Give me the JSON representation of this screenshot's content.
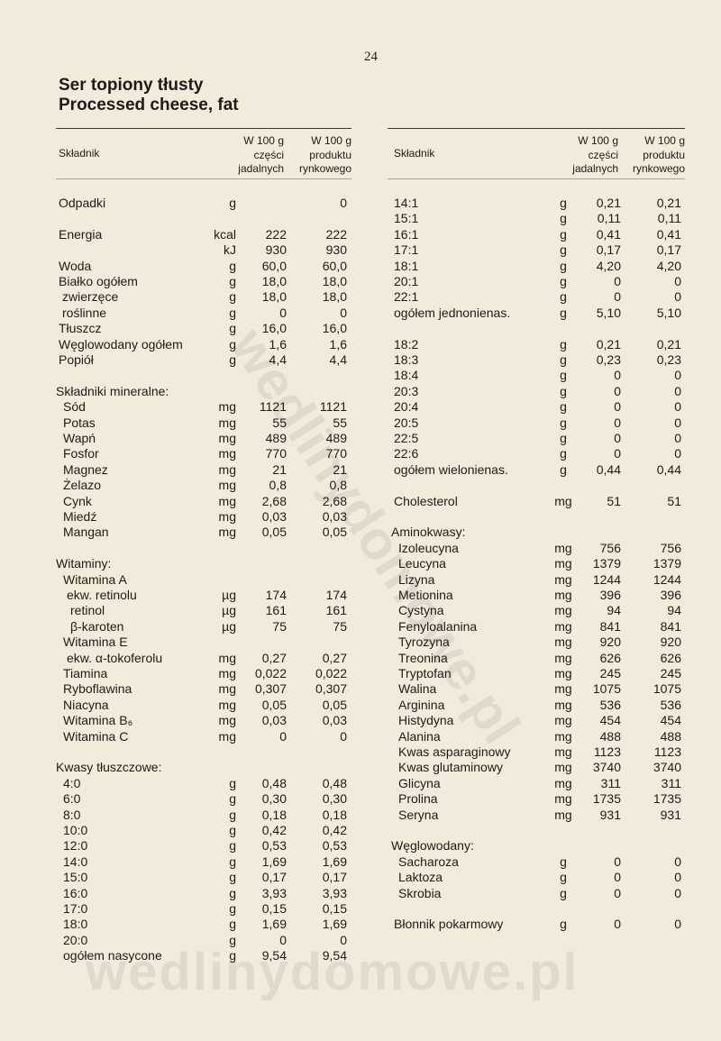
{
  "page_number": "24",
  "title": [
    "Ser topiony tłusty",
    "Processed cheese, fat"
  ],
  "header": {
    "name": "Składnik",
    "edible": [
      "W 100 g",
      "części",
      "jadalnych"
    ],
    "market": [
      "W 100 g",
      "produktu",
      "rynkowego"
    ]
  },
  "left": [
    {
      "rows": [
        [
          "Odpadki",
          "g",
          null,
          "0"
        ]
      ]
    },
    {
      "rows": [
        [
          "Energia",
          "kcal",
          "222",
          "222"
        ],
        [
          null,
          "kJ",
          "930",
          "930"
        ],
        [
          "Woda",
          "g",
          "60,0",
          "60,0"
        ],
        [
          "Białko ogółem",
          "g",
          "18,0",
          "18,0",
          [
            [
              "zwierzęce",
              "g",
              "18,0",
              "18,0"
            ],
            [
              "roślinne",
              "g",
              "0",
              "0"
            ]
          ]
        ],
        [
          "Tłuszcz",
          "g",
          "16,0",
          "16,0"
        ],
        [
          "Węglowodany ogółem",
          "g",
          "1,6",
          "1,6"
        ],
        [
          "Popiół",
          "g",
          "4,4",
          "4,4"
        ]
      ]
    },
    {
      "heading": "Składniki mineralne:",
      "rows": [
        [
          "Sód",
          "mg",
          "1121",
          "1121"
        ],
        [
          "Potas",
          "mg",
          "55",
          "55"
        ],
        [
          "Wapń",
          "mg",
          "489",
          "489"
        ],
        [
          "Fosfor",
          "mg",
          "770",
          "770"
        ],
        [
          "Magnez",
          "mg",
          "21",
          "21"
        ],
        [
          "Żelazo",
          "mg",
          "0,8",
          "0,8"
        ],
        [
          "Cynk",
          "mg",
          "2,68",
          "2,68"
        ],
        [
          "Miedź",
          "mg",
          "0,03",
          "0,03"
        ],
        [
          "Mangan",
          "mg",
          "0,05",
          "0,05"
        ]
      ]
    },
    {
      "heading": "Witaminy:",
      "rows": [
        [
          "Witamina A",
          null,
          null,
          null,
          [
            [
              "ekw. retinolu",
              "µg",
              "174",
              "174",
              [
                [
                  "retinol",
                  "µg",
                  "161",
                  "161"
                ],
                [
                  "β-karoten",
                  "µg",
                  "75",
                  "75"
                ]
              ]
            ]
          ]
        ],
        [
          "Witamina E",
          null,
          null,
          null,
          [
            [
              "ekw. α-tokoferolu",
              "mg",
              "0,27",
              "0,27"
            ]
          ]
        ],
        [
          "Tiamina",
          "mg",
          "0,022",
          "0,022"
        ],
        [
          "Ryboflawina",
          "mg",
          "0,307",
          "0,307"
        ],
        [
          "Niacyna",
          "mg",
          "0,05",
          "0,05"
        ],
        [
          "Witamina B₆",
          "mg",
          "0,03",
          "0,03"
        ],
        [
          "Witamina C",
          "mg",
          "0",
          "0"
        ]
      ]
    },
    {
      "heading": "Kwasy tłuszczowe:",
      "rows": [
        [
          "4:0",
          "g",
          "0,48",
          "0,48"
        ],
        [
          "6:0",
          "g",
          "0,30",
          "0,30"
        ],
        [
          "8:0",
          "g",
          "0,18",
          "0,18"
        ],
        [
          "10:0",
          "g",
          "0,42",
          "0,42"
        ],
        [
          "12:0",
          "g",
          "0,53",
          "0,53"
        ],
        [
          "14:0",
          "g",
          "1,69",
          "1,69"
        ],
        [
          "15:0",
          "g",
          "0,17",
          "0,17"
        ],
        [
          "16:0",
          "g",
          "3,93",
          "3,93"
        ],
        [
          "17:0",
          "g",
          "0,15",
          "0,15"
        ],
        [
          "18:0",
          "g",
          "1,69",
          "1,69"
        ],
        [
          "20:0",
          "g",
          "0",
          "0"
        ],
        [
          "ogółem nasycone",
          "g",
          "9,54",
          "9,54"
        ]
      ]
    }
  ],
  "right": [
    {
      "rows": [
        [
          "14:1",
          "g",
          "0,21",
          "0,21"
        ],
        [
          "15:1",
          "g",
          "0,11",
          "0,11"
        ],
        [
          "16:1",
          "g",
          "0,41",
          "0,41"
        ],
        [
          "17:1",
          "g",
          "0,17",
          "0,17"
        ],
        [
          "18:1",
          "g",
          "4,20",
          "4,20"
        ],
        [
          "20:1",
          "g",
          "0",
          "0"
        ],
        [
          "22:1",
          "g",
          "0",
          "0"
        ],
        [
          "ogółem jednonienas.",
          "g",
          "5,10",
          "5,10"
        ]
      ]
    },
    {
      "rows": [
        [
          "18:2",
          "g",
          "0,21",
          "0,21"
        ],
        [
          "18:3",
          "g",
          "0,23",
          "0,23"
        ],
        [
          "18:4",
          "g",
          "0",
          "0"
        ],
        [
          "20:3",
          "g",
          "0",
          "0"
        ],
        [
          "20:4",
          "g",
          "0",
          "0"
        ],
        [
          "20:5",
          "g",
          "0",
          "0"
        ],
        [
          "22:5",
          "g",
          "0",
          "0"
        ],
        [
          "22:6",
          "g",
          "0",
          "0"
        ],
        [
          "ogółem wielonienas.",
          "g",
          "0,44",
          "0,44"
        ]
      ]
    },
    {
      "rows": [
        [
          "Cholesterol",
          "mg",
          "51",
          "51"
        ]
      ]
    },
    {
      "heading": "Aminokwasy:",
      "rows": [
        [
          "Izoleucyna",
          "mg",
          "756",
          "756"
        ],
        [
          "Leucyna",
          "mg",
          "1379",
          "1379"
        ],
        [
          "Lizyna",
          "mg",
          "1244",
          "1244"
        ],
        [
          "Metionina",
          "mg",
          "396",
          "396"
        ],
        [
          "Cystyna",
          "mg",
          "94",
          "94"
        ],
        [
          "Fenyloalanina",
          "mg",
          "841",
          "841"
        ],
        [
          "Tyrozyna",
          "mg",
          "920",
          "920"
        ],
        [
          "Treonina",
          "mg",
          "626",
          "626"
        ],
        [
          "Tryptofan",
          "mg",
          "245",
          "245"
        ],
        [
          "Walina",
          "mg",
          "1075",
          "1075"
        ],
        [
          "Arginina",
          "mg",
          "536",
          "536"
        ],
        [
          "Histydyna",
          "mg",
          "454",
          "454"
        ],
        [
          "Alanina",
          "mg",
          "488",
          "488"
        ],
        [
          "Kwas asparaginowy",
          "mg",
          "1123",
          "1123"
        ],
        [
          "Kwas glutaminowy",
          "mg",
          "3740",
          "3740"
        ],
        [
          "Glicyna",
          "mg",
          "311",
          "311"
        ],
        [
          "Prolina",
          "mg",
          "1735",
          "1735"
        ],
        [
          "Seryna",
          "mg",
          "931",
          "931"
        ]
      ]
    },
    {
      "heading": "Węglowodany:",
      "rows": [
        [
          "Sacharoza",
          "g",
          "0",
          "0"
        ],
        [
          "Laktoza",
          "g",
          "0",
          "0"
        ],
        [
          "Skrobia",
          "g",
          "0",
          "0"
        ]
      ]
    },
    {
      "rows": [
        [
          "Błonnik pokarmowy",
          "g",
          "0",
          "0"
        ]
      ]
    }
  ],
  "watermark": "wedlinydomowe.pl"
}
